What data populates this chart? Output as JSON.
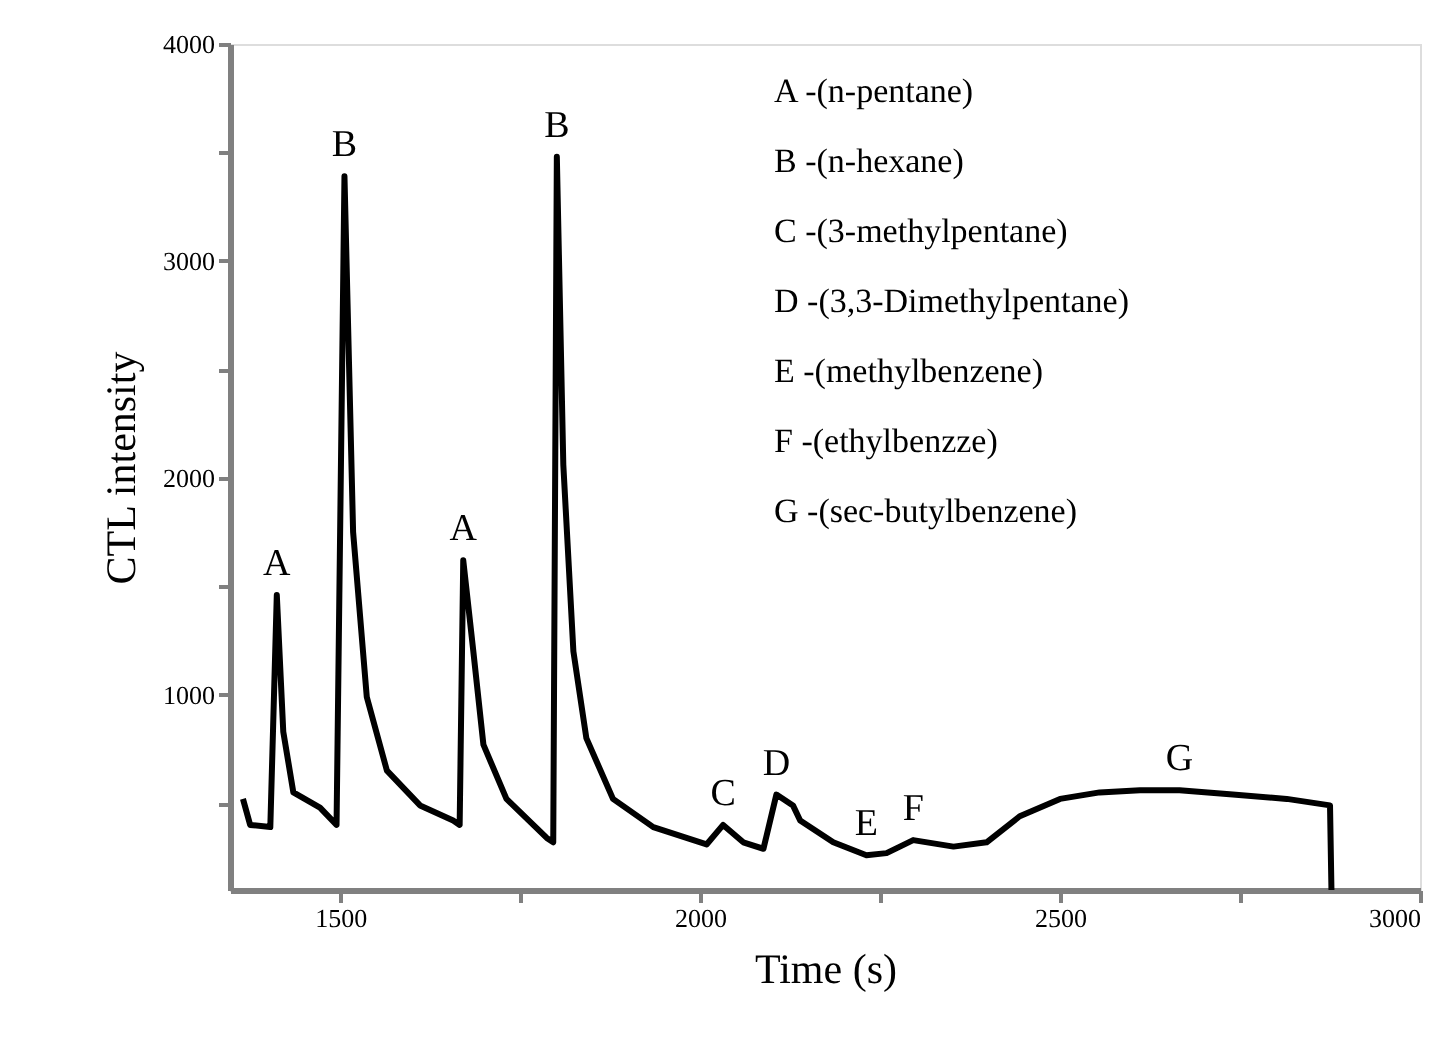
{
  "chart_data": {
    "type": "line",
    "xlabel": "Time (s)",
    "ylabel": "CTL intensity",
    "x": [
      1365,
      1375,
      1403,
      1412,
      1421,
      1435,
      1472,
      1495,
      1506,
      1518,
      1537,
      1565,
      1611,
      1657,
      1666,
      1671,
      1685,
      1699,
      1731,
      1787,
      1796,
      1801,
      1810,
      1824,
      1842,
      1879,
      1935,
      2009,
      2032,
      2060,
      2088,
      2106,
      2129,
      2139,
      2185,
      2231,
      2259,
      2296,
      2352,
      2398,
      2444,
      2500,
      2555,
      2611,
      2666,
      2740,
      2815,
      2875,
      2877
    ],
    "series": [
      {
        "color": "#000000",
        "values": [
          520,
          400,
          390,
          1460,
          830,
          550,
          480,
          400,
          3390,
          1750,
          990,
          650,
          490,
          420,
          400,
          1620,
          1200,
          770,
          520,
          340,
          320,
          3480,
          2060,
          1200,
          800,
          520,
          390,
          310,
          400,
          320,
          290,
          540,
          490,
          420,
          320,
          260,
          270,
          330,
          300,
          320,
          440,
          520,
          550,
          560,
          560,
          540,
          520,
          490,
          100
        ]
      }
    ],
    "xlim": [
      1347,
      3000
    ],
    "xticks": [
      1500,
      {
        "value": 1750,
        "label": null
      },
      2000,
      {
        "value": 2250,
        "label": null
      },
      2500,
      {
        "value": 2750,
        "label": null
      },
      3000
    ],
    "ylim": [
      100,
      4000
    ],
    "yticks": [
      {
        "value": 500,
        "label": null
      },
      1000,
      {
        "value": 1500,
        "label": null
      },
      2000,
      {
        "value": 2500,
        "label": null
      },
      3000,
      {
        "value": 3500,
        "label": null
      },
      4000
    ],
    "grid": false,
    "marker": "none",
    "line_style": "solid",
    "annotations": [
      "A -(n-pentane)",
      "B -(n-hexane)",
      "C -(3-methylpentane)",
      "D -(3,3-Dimethylpentane)",
      "E -(methylbenzene)",
      "F -(ethylbenzze)",
      "G -(sec-butylbenzene)",
      {
        "text": "A",
        "x": 1412,
        "y": 1460
      },
      {
        "text": "B",
        "x": 1506,
        "y": 3390
      },
      {
        "text": "A",
        "x": 1671,
        "y": 1620
      },
      {
        "text": "B",
        "x": 1801,
        "y": 3480
      },
      {
        "text": "C",
        "x": 2032,
        "y": 400
      },
      {
        "text": "D",
        "x": 2106,
        "y": 540
      },
      {
        "text": "E",
        "x": 2231,
        "y": 260
      },
      {
        "text": "F",
        "x": 2296,
        "y": 330
      },
      {
        "text": "G",
        "x": 2666,
        "y": 560
      }
    ]
  }
}
